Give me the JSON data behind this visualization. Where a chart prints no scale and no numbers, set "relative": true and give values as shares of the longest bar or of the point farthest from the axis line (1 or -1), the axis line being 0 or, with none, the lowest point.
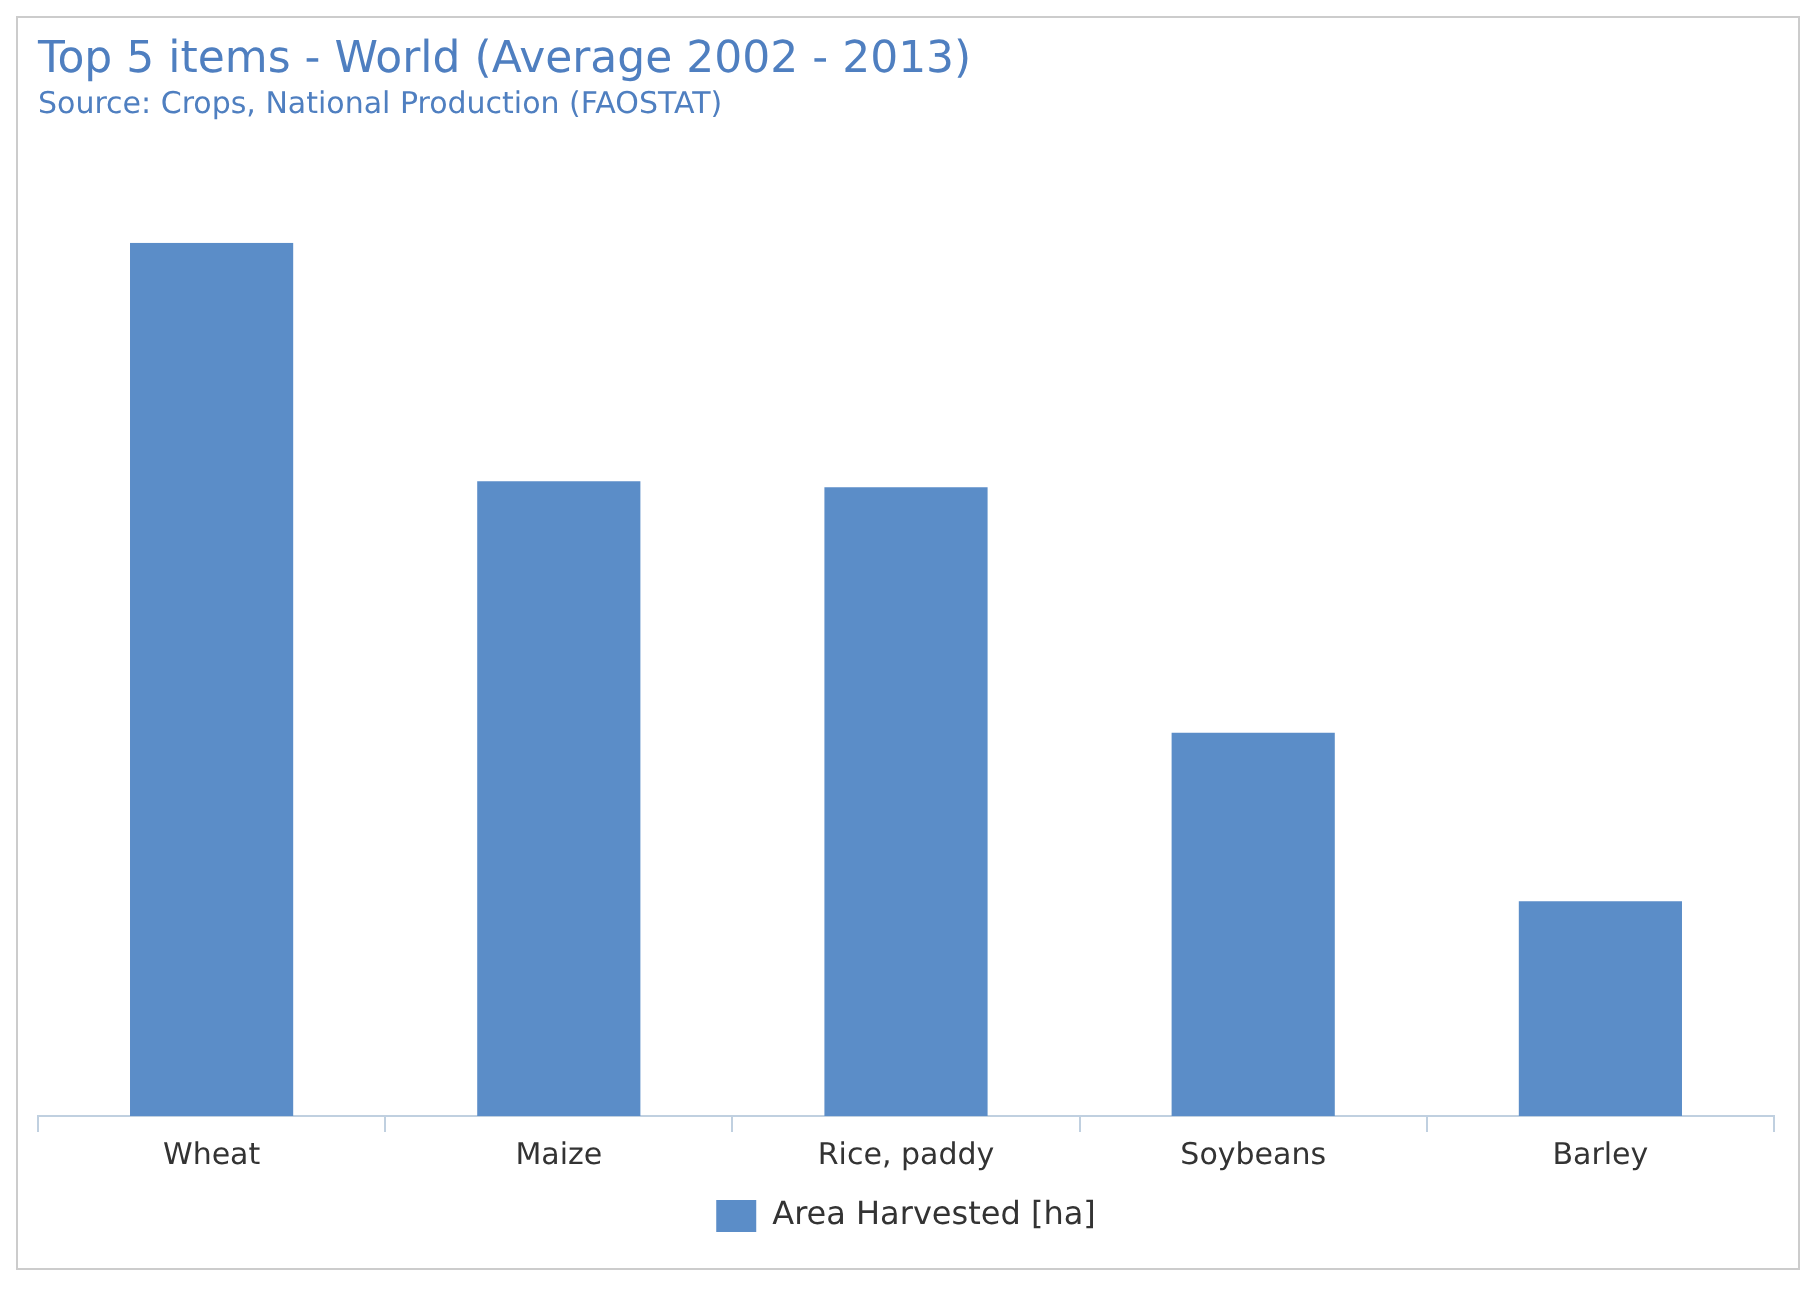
{
  "chart_data": {
    "type": "bar",
    "title": "Top 5 items - World (Average 2002 - 2013)",
    "subtitle": "Source: Crops, National Production (FAOSTAT)",
    "categories": [
      "Wheat",
      "Maize",
      "Rice, paddy",
      "Soybeans",
      "Barley"
    ],
    "relative": true,
    "series": [
      {
        "name": "Area Harvested [ha]",
        "color": "#5b8dc8",
        "values": [
          1,
          0.727,
          0.72,
          0.439,
          0.246
        ]
      }
    ],
    "legend": "bottom",
    "grid": false
  }
}
